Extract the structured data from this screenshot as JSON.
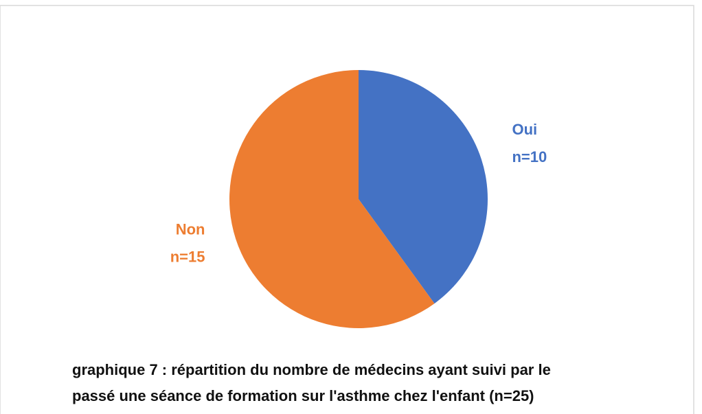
{
  "chart_data": {
    "type": "pie",
    "title": [
      "graphique 7 : répartition du nombre de médecins ayant suivi par le",
      "passé une séance de formation sur l'asthme chez l'enfant (n=25)"
    ],
    "categories": [
      "Oui",
      "Non"
    ],
    "values": [
      10,
      15
    ],
    "value_labels": [
      "n=10",
      "n=15"
    ],
    "colors": [
      "#4472c4",
      "#ed7d31"
    ]
  }
}
